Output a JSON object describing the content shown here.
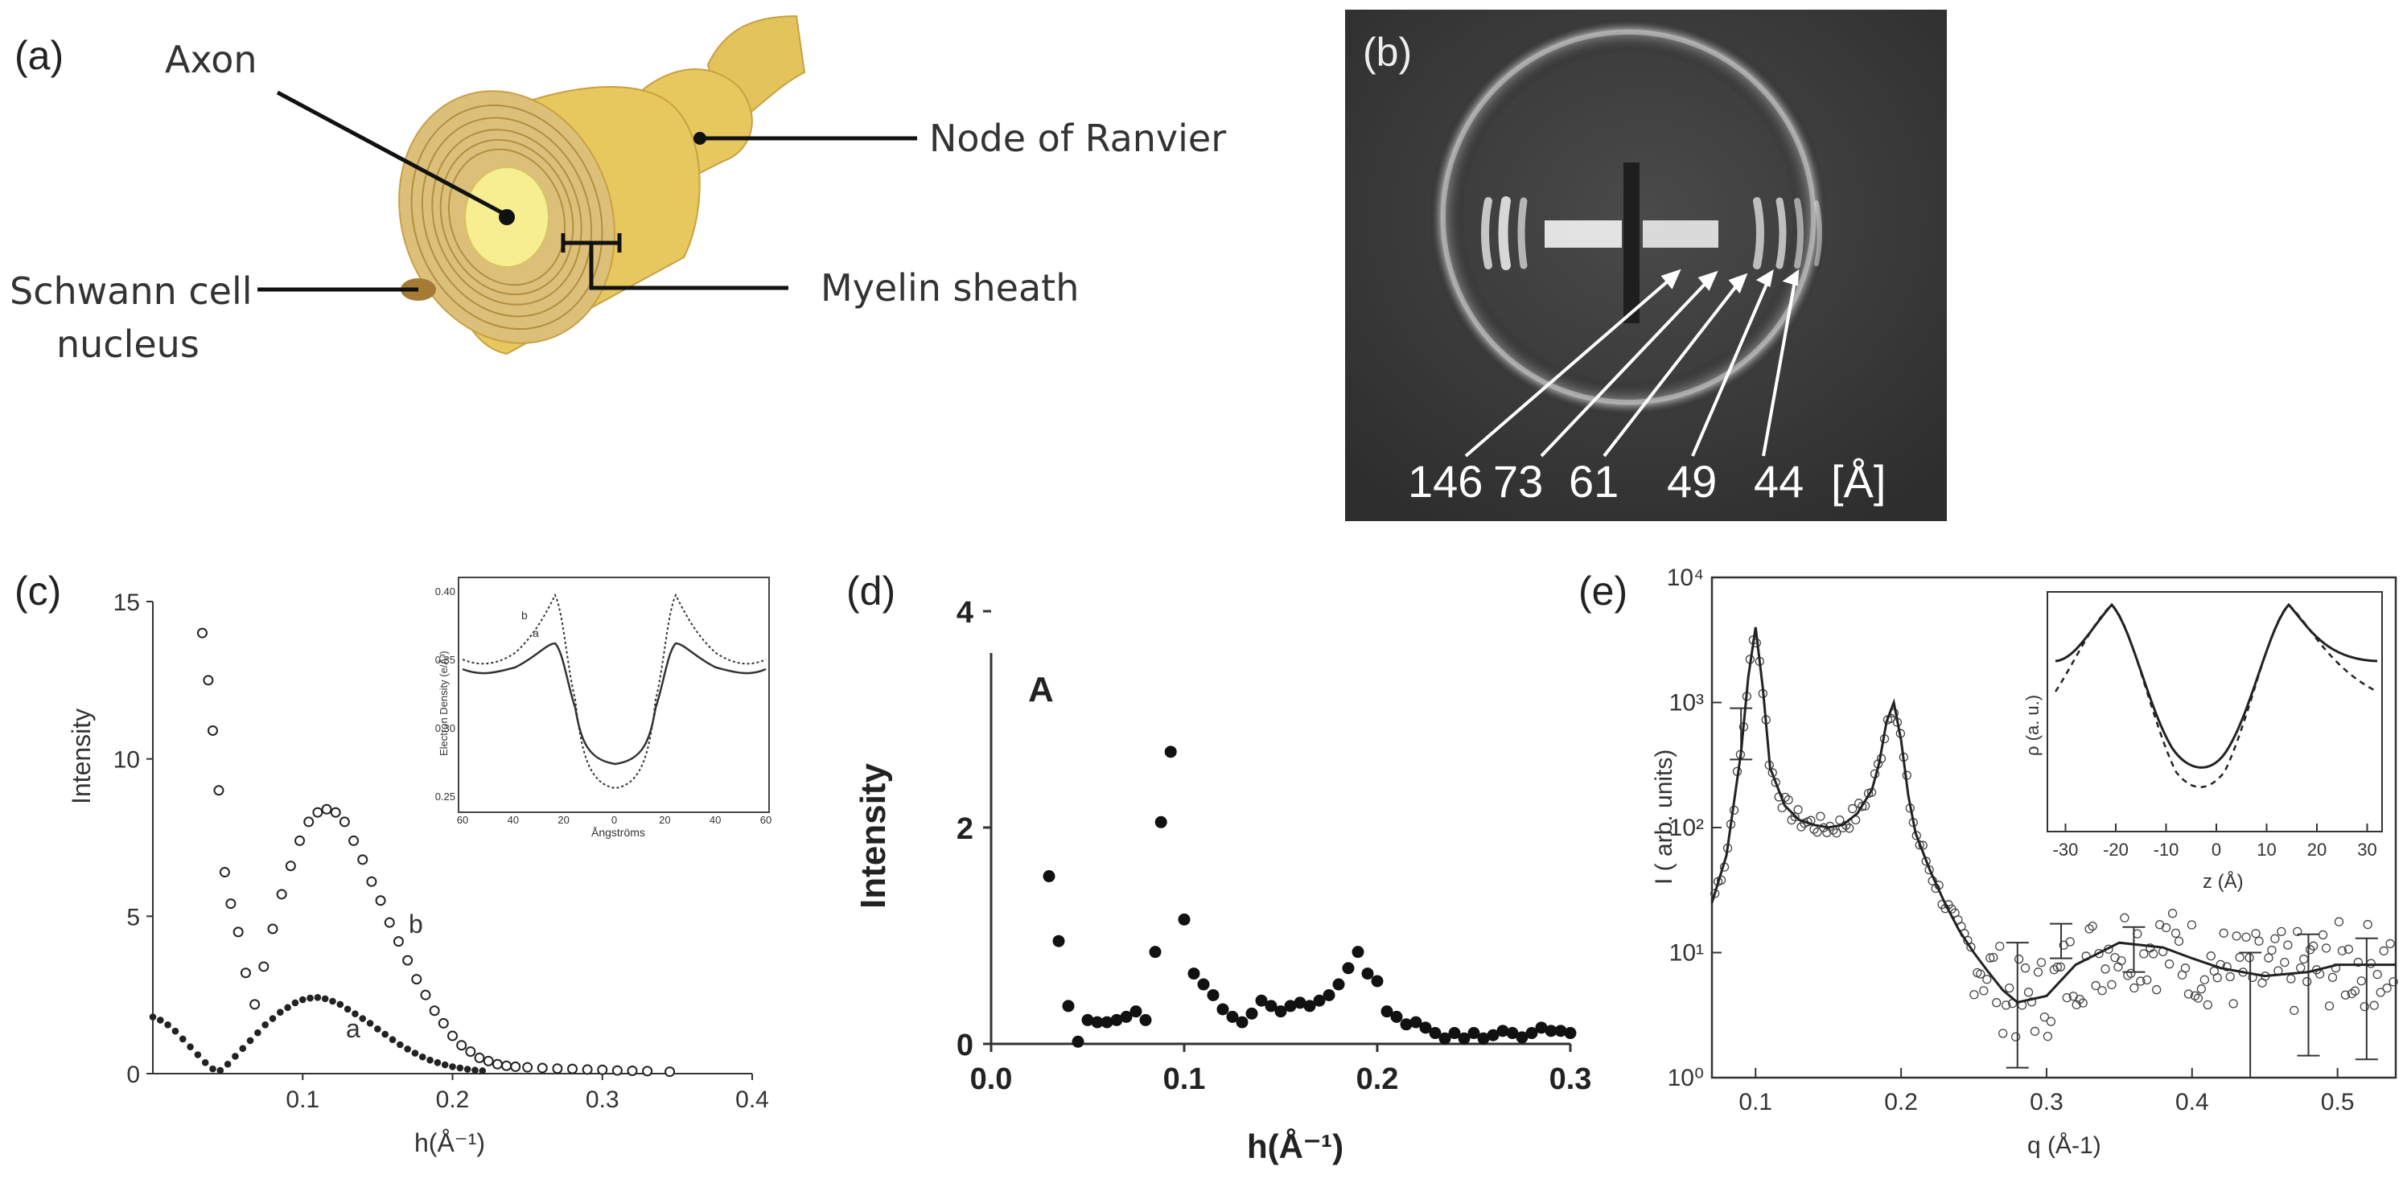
{
  "panels": {
    "a": {
      "label": "(a)",
      "annotations": {
        "axon": "Axon",
        "node": "Node of Ranvier",
        "schwann_line1": "Schwann cell",
        "schwann_line2": "nucleus",
        "myelin": "Myelin sheath"
      }
    },
    "b": {
      "label": "(b)",
      "spacings": [
        "146",
        "73",
        "61",
        "49",
        "44"
      ],
      "unit": "[Å]"
    },
    "c": {
      "label": "(c)"
    },
    "d": {
      "label": "(d)"
    },
    "e": {
      "label": "(e)"
    }
  },
  "colors": {
    "nerve_outer": "#e7c85e",
    "nerve_light": "#f1dc8a",
    "nerve_ring": "#c9a043",
    "axon_core": "#f6ee90",
    "xray_bg": "#3a3a3a"
  },
  "chart_data": [
    {
      "id": "c",
      "type": "scatter",
      "xlabel": "h(Å⁻¹)",
      "ylabel": "Intensity",
      "xlim": [
        0,
        0.4
      ],
      "ylim": [
        0,
        15
      ],
      "xticks": [
        "0.1",
        "0.2",
        "0.3",
        "0.4"
      ],
      "yticks": [
        "0",
        "5",
        "10",
        "15"
      ],
      "series": [
        {
          "name": "b",
          "marker": "open",
          "x": [
            0.033,
            0.037,
            0.04,
            0.044,
            0.048,
            0.052,
            0.057,
            0.062,
            0.068,
            0.074,
            0.08,
            0.086,
            0.092,
            0.098,
            0.104,
            0.11,
            0.116,
            0.122,
            0.128,
            0.134,
            0.14,
            0.146,
            0.152,
            0.158,
            0.164,
            0.17,
            0.176,
            0.182,
            0.188,
            0.194,
            0.2,
            0.206,
            0.212,
            0.218,
            0.224,
            0.23,
            0.236,
            0.242,
            0.25,
            0.26,
            0.27,
            0.28,
            0.29,
            0.3,
            0.31,
            0.32,
            0.33,
            0.345
          ],
          "y": [
            14.0,
            12.5,
            10.9,
            9.0,
            6.4,
            5.4,
            4.5,
            3.2,
            2.2,
            3.4,
            4.6,
            5.7,
            6.6,
            7.4,
            8.0,
            8.3,
            8.4,
            8.3,
            8.0,
            7.4,
            6.8,
            6.1,
            5.5,
            4.8,
            4.2,
            3.6,
            3.0,
            2.5,
            2.0,
            1.6,
            1.2,
            0.9,
            0.7,
            0.5,
            0.4,
            0.3,
            0.25,
            0.22,
            0.2,
            0.18,
            0.16,
            0.15,
            0.13,
            0.12,
            0.1,
            0.09,
            0.08,
            0.06
          ]
        },
        {
          "name": "a",
          "marker": "filled",
          "x": [
            0.0,
            0.005,
            0.01,
            0.015,
            0.02,
            0.025,
            0.03,
            0.035,
            0.04,
            0.045,
            0.05,
            0.055,
            0.06,
            0.065,
            0.07,
            0.075,
            0.08,
            0.085,
            0.09,
            0.095,
            0.1,
            0.105,
            0.11,
            0.115,
            0.12,
            0.125,
            0.13,
            0.135,
            0.14,
            0.145,
            0.15,
            0.155,
            0.16,
            0.165,
            0.17,
            0.175,
            0.18,
            0.185,
            0.19,
            0.195,
            0.2,
            0.205,
            0.21,
            0.215,
            0.22
          ],
          "y": [
            1.8,
            1.7,
            1.55,
            1.35,
            1.1,
            0.85,
            0.6,
            0.35,
            0.15,
            0.1,
            0.3,
            0.55,
            0.8,
            1.05,
            1.3,
            1.55,
            1.75,
            1.95,
            2.1,
            2.25,
            2.35,
            2.4,
            2.42,
            2.38,
            2.3,
            2.2,
            2.05,
            1.9,
            1.75,
            1.6,
            1.42,
            1.25,
            1.08,
            0.92,
            0.78,
            0.65,
            0.53,
            0.43,
            0.35,
            0.28,
            0.22,
            0.18,
            0.14,
            0.11,
            0.09
          ]
        }
      ],
      "annotations": [
        "a",
        "b"
      ],
      "inset": {
        "xlabel": "Ångströms",
        "ylabel": "Electron Density (e/Å³)",
        "xlim": [
          -60,
          60
        ],
        "ylim": [
          0.25,
          0.4
        ],
        "xticks": [
          "60",
          "40",
          "20",
          "0",
          "20",
          "40",
          "60"
        ],
        "yticks": [
          "0.25",
          "0.30",
          "0.35",
          "0.40"
        ],
        "series_labels": [
          "b",
          "a"
        ]
      }
    },
    {
      "id": "d",
      "type": "scatter",
      "xlabel": "h(Å⁻¹)",
      "ylabel": "Intensity",
      "title": "A",
      "xlim": [
        0,
        0.3
      ],
      "ylim": [
        0,
        4
      ],
      "xticks": [
        "0.0",
        "0.1",
        "0.2",
        "0.3"
      ],
      "yticks": [
        "0",
        "2",
        "4"
      ],
      "x": [
        0.03,
        0.035,
        0.04,
        0.045,
        0.05,
        0.055,
        0.06,
        0.065,
        0.07,
        0.075,
        0.08,
        0.085,
        0.088,
        0.093,
        0.1,
        0.105,
        0.11,
        0.115,
        0.12,
        0.125,
        0.13,
        0.135,
        0.14,
        0.145,
        0.15,
        0.155,
        0.16,
        0.165,
        0.17,
        0.175,
        0.18,
        0.185,
        0.19,
        0.195,
        0.2,
        0.205,
        0.21,
        0.215,
        0.22,
        0.225,
        0.23,
        0.235,
        0.24,
        0.245,
        0.25,
        0.255,
        0.26,
        0.265,
        0.27,
        0.275,
        0.28,
        0.285,
        0.29,
        0.295,
        0.3
      ],
      "y": [
        1.55,
        0.95,
        0.35,
        0.02,
        0.22,
        0.2,
        0.2,
        0.22,
        0.25,
        0.3,
        0.22,
        0.85,
        2.05,
        2.7,
        1.15,
        0.65,
        0.55,
        0.45,
        0.32,
        0.25,
        0.2,
        0.28,
        0.4,
        0.35,
        0.3,
        0.35,
        0.38,
        0.35,
        0.4,
        0.45,
        0.55,
        0.7,
        0.85,
        0.65,
        0.58,
        0.3,
        0.25,
        0.18,
        0.2,
        0.15,
        0.1,
        0.05,
        0.1,
        0.05,
        0.1,
        0.05,
        0.08,
        0.12,
        0.1,
        0.06,
        0.1,
        0.15,
        0.12,
        0.12,
        0.1
      ]
    },
    {
      "id": "e",
      "type": "scatter",
      "xlabel": "q (Å-1)",
      "ylabel": "I ( arb. units)",
      "yscale": "log",
      "xlim": [
        0.07,
        0.54
      ],
      "ylim": [
        1,
        10000
      ],
      "xticks": [
        "0.1",
        "0.2",
        "0.3",
        "0.4",
        "0.5"
      ],
      "yticks": [
        "10⁰",
        "10¹",
        "10²",
        "10³",
        "10⁴"
      ],
      "fit_x": [
        0.07,
        0.08,
        0.09,
        0.095,
        0.1,
        0.105,
        0.11,
        0.12,
        0.13,
        0.14,
        0.15,
        0.16,
        0.17,
        0.18,
        0.185,
        0.19,
        0.195,
        0.2,
        0.205,
        0.21,
        0.22,
        0.23,
        0.24,
        0.25,
        0.26,
        0.27,
        0.28,
        0.3,
        0.32,
        0.35,
        0.38,
        0.4,
        0.42,
        0.45,
        0.48,
        0.5,
        0.54
      ],
      "fit_y": [
        25,
        60,
        400,
        1600,
        4000,
        1300,
        300,
        150,
        115,
        105,
        100,
        105,
        130,
        200,
        330,
        700,
        1000,
        500,
        180,
        90,
        45,
        25,
        15,
        10,
        7,
        5,
        4,
        4.5,
        8,
        12,
        11,
        9,
        7.5,
        6.5,
        7,
        8,
        8
      ],
      "inset": {
        "xlabel": "z (Å)",
        "ylabel": "ρ (a. u.)",
        "xlim": [
          -32,
          32
        ],
        "xticks": [
          "-30",
          "-20",
          "-10",
          "0",
          "10",
          "20",
          "30"
        ]
      }
    }
  ]
}
